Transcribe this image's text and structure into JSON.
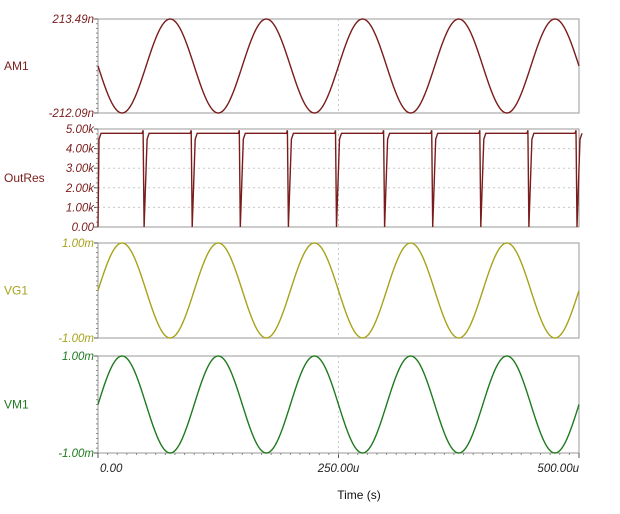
{
  "chart_data": {
    "type": "line",
    "xlabel": "Time (s)",
    "xlim": [
      0,
      500
    ],
    "x_ticks": [
      "0.00",
      "250.00u",
      "500.00u"
    ],
    "grid": true,
    "panels": [
      {
        "name": "AM1",
        "color": "#7a1c1c",
        "ylim": [
          -212.09,
          213.49
        ],
        "y_ticks": [
          "213.49n",
          "-212.09n"
        ],
        "waveform": {
          "kind": "sine",
          "period": 100,
          "phase_deg": 180,
          "peak_time": 75,
          "amplitude": 213
        }
      },
      {
        "name": "OutRes",
        "color": "#7a1c1c",
        "ylim": [
          0,
          5000
        ],
        "y_ticks": [
          "5.00k",
          "4.00k",
          "3.00k",
          "2.00k",
          "1.00k",
          "0.00"
        ],
        "waveform": {
          "kind": "pulse",
          "high": 4780,
          "low": 0,
          "dip_times": [
            0,
            50,
            100,
            150,
            200,
            250,
            300,
            350,
            400,
            450,
            500
          ]
        }
      },
      {
        "name": "VG1",
        "color": "#a6a31a",
        "ylim": [
          -1,
          1
        ],
        "y_ticks": [
          "1.00m",
          "-1.00m"
        ],
        "waveform": {
          "kind": "sine",
          "period": 100,
          "phase_deg": 0,
          "peak_time": 25,
          "amplitude": 1
        }
      },
      {
        "name": "VM1",
        "color": "#1f7a1f",
        "ylim": [
          -1,
          1
        ],
        "y_ticks": [
          "1.00m",
          "-1.00m"
        ],
        "waveform": {
          "kind": "sine",
          "period": 100,
          "phase_deg": 0,
          "peak_time": 25,
          "amplitude": 1
        }
      }
    ]
  }
}
